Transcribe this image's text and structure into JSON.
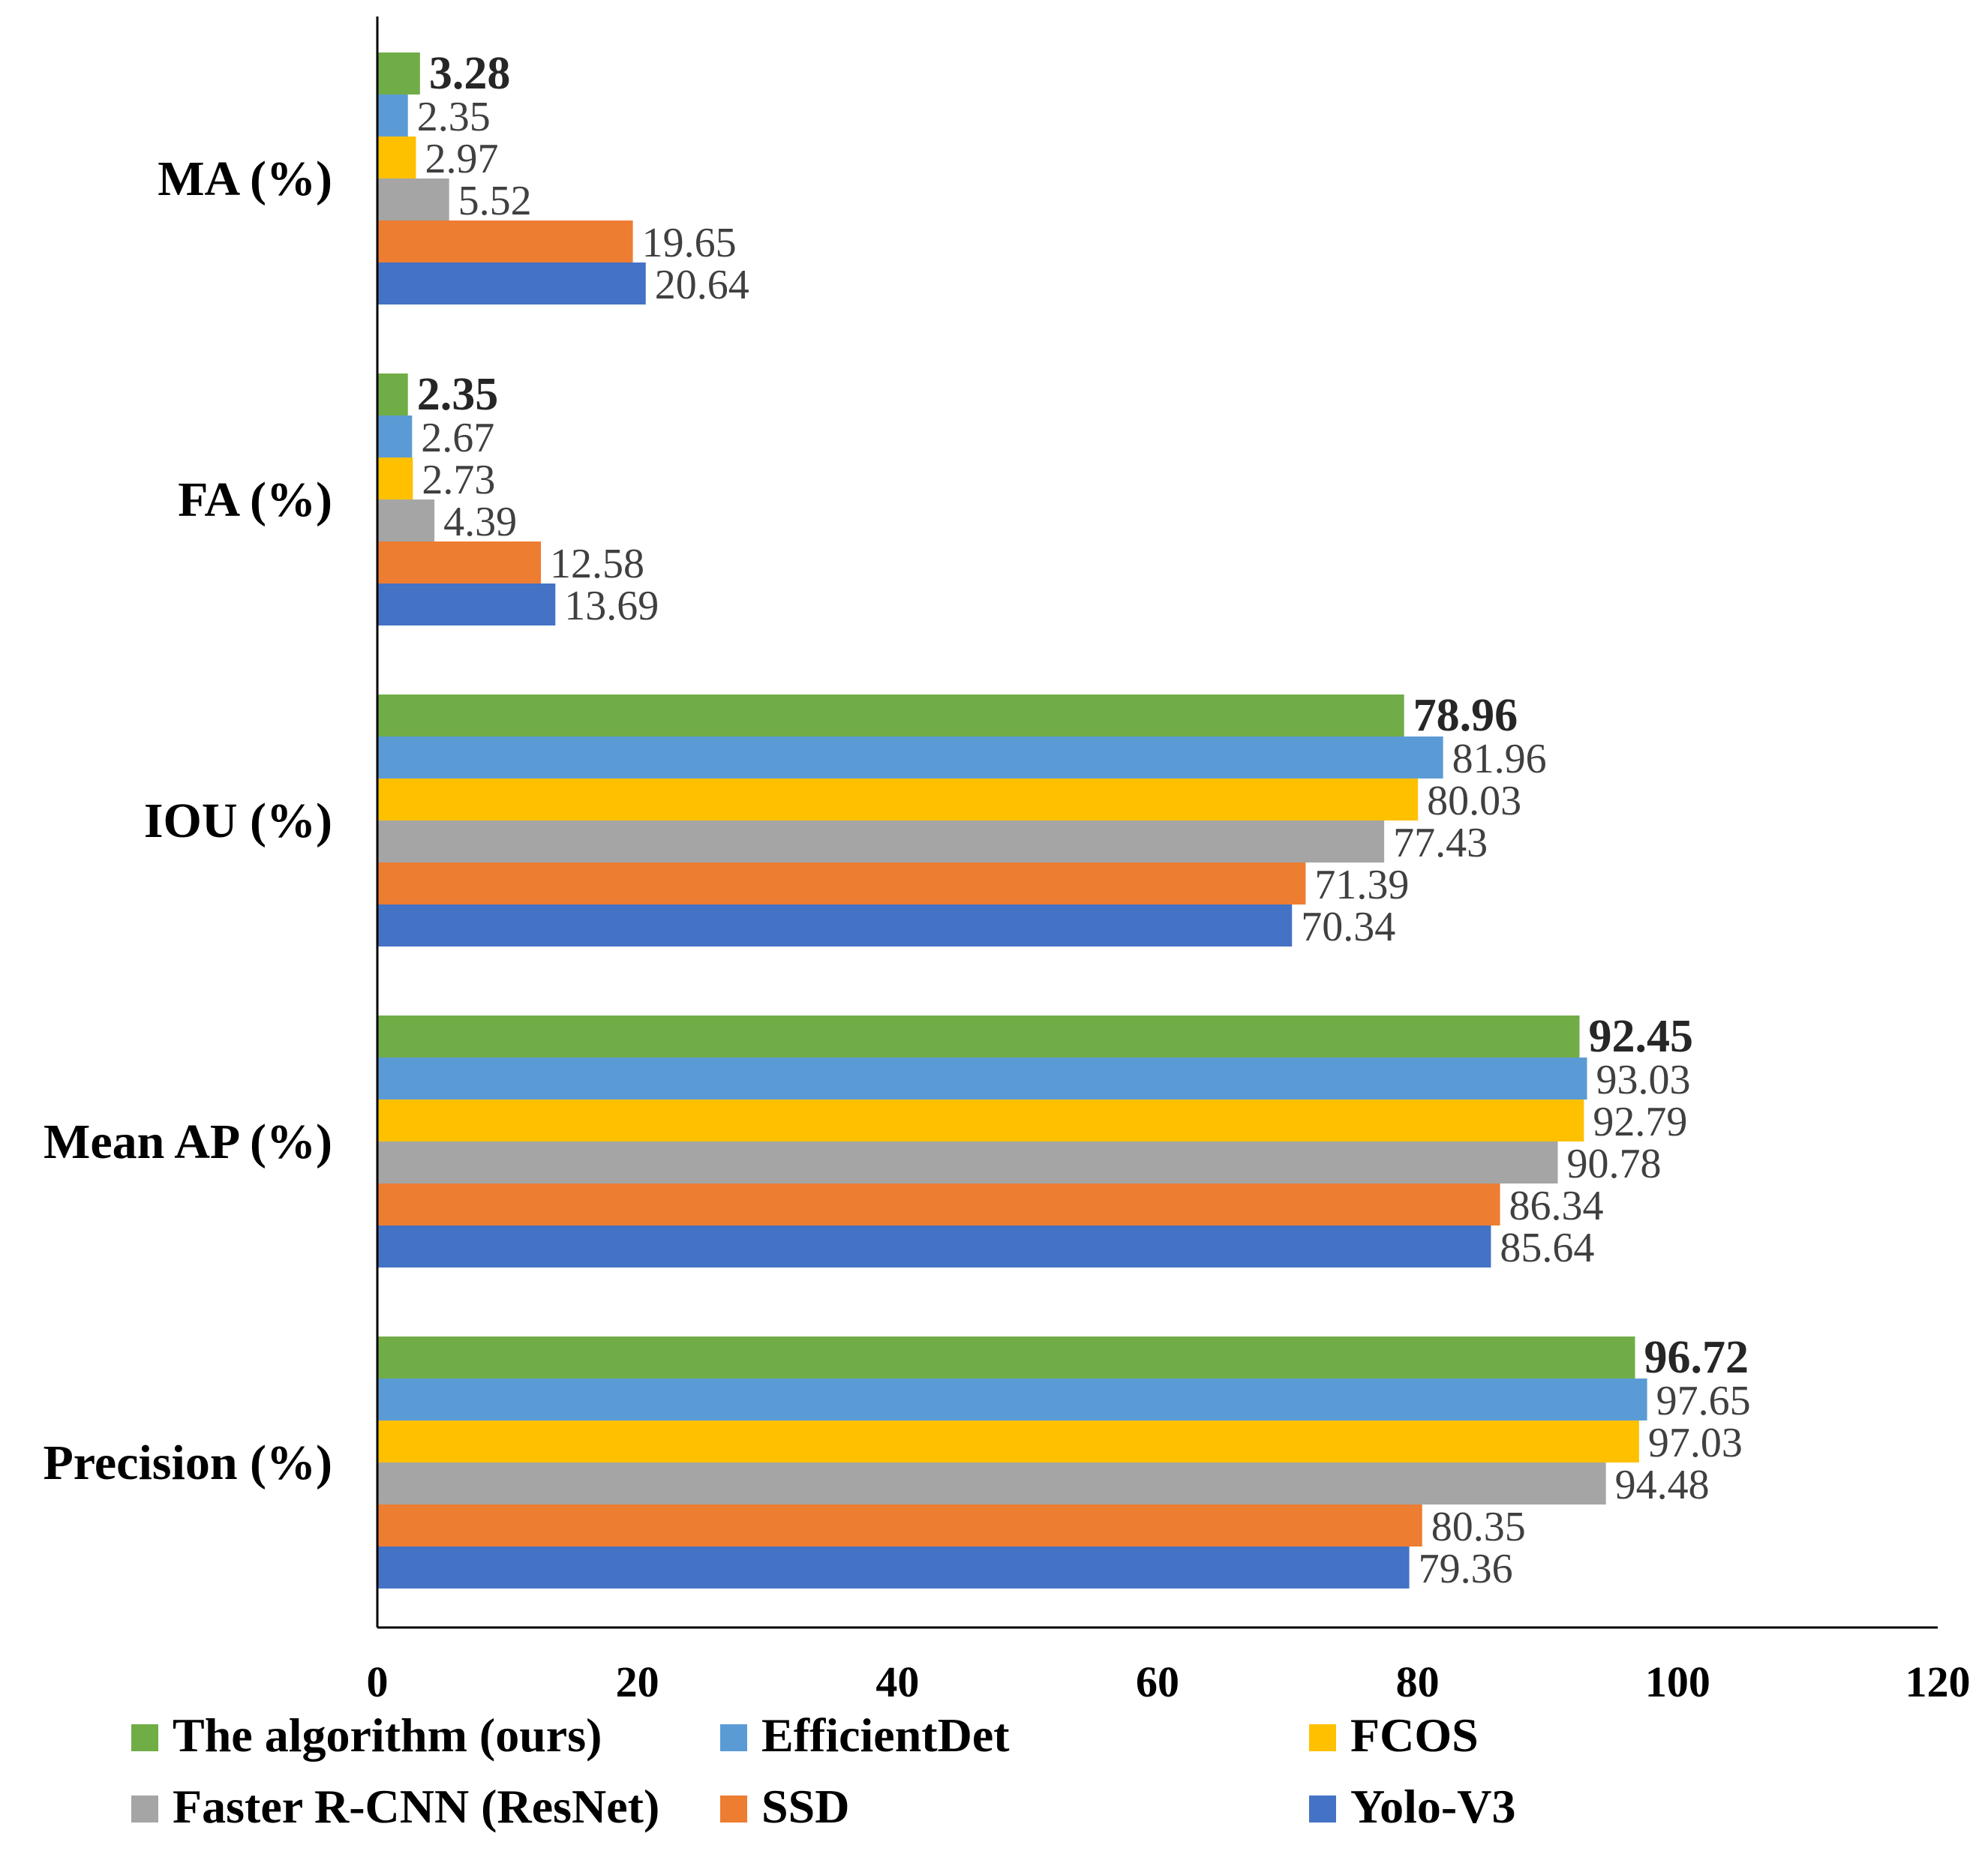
{
  "chart_data": {
    "type": "bar",
    "orientation": "horizontal",
    "categories": [
      "MA (%)",
      "FA (%)",
      "IOU (%)",
      "Mean AP (%)",
      "Precision (%)"
    ],
    "series": [
      {
        "name": "The algorithm (ours)",
        "color": "#70AD47",
        "bold_labels": true,
        "values": [
          3.28,
          2.35,
          78.96,
          92.45,
          96.72
        ]
      },
      {
        "name": "EfficientDet",
        "color": "#5B9BD5",
        "values": [
          2.35,
          2.67,
          81.96,
          93.03,
          97.65
        ]
      },
      {
        "name": "FCOS",
        "color": "#FFC000",
        "values": [
          2.97,
          2.73,
          80.03,
          92.79,
          97.03
        ]
      },
      {
        "name": "Faster R-CNN (ResNet)",
        "color": "#A5A5A5",
        "values": [
          5.52,
          4.39,
          77.43,
          90.78,
          94.48
        ]
      },
      {
        "name": "SSD",
        "color": "#ED7D31",
        "values": [
          19.65,
          12.58,
          71.39,
          86.34,
          80.35
        ]
      },
      {
        "name": "Yolo-V3",
        "color": "#4472C4",
        "values": [
          20.64,
          13.69,
          70.34,
          85.64,
          79.36
        ]
      }
    ],
    "value_labels": [
      [
        "3.28",
        "2.35",
        "78.96",
        "92.45",
        "96.72"
      ],
      [
        "2.35",
        "2.67",
        "81.96",
        "93.03",
        "97.65"
      ],
      [
        "2.97",
        "2.73",
        "80.03",
        "92.79",
        "97.03"
      ],
      [
        "5.52",
        "4.39",
        "77.43",
        "90.78",
        "94.48"
      ],
      [
        "19.65",
        "12.58",
        "71.39",
        "86.34",
        "80.35"
      ],
      [
        "20.64",
        "13.69",
        "70.34",
        "85.64",
        "79.36"
      ]
    ],
    "xlim": [
      0,
      120
    ],
    "xticks": [
      0,
      20,
      40,
      60,
      80,
      100,
      120
    ],
    "xtick_labels": [
      "0",
      "20",
      "40",
      "60",
      "80",
      "100",
      "120"
    ],
    "title": "",
    "xlabel": "",
    "ylabel": "",
    "grid": false,
    "legend_position": "bottom"
  }
}
